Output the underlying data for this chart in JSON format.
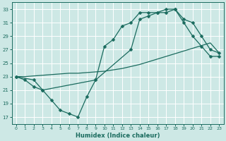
{
  "xlabel": "Humidex (Indice chaleur)",
  "background_color": "#cde8e5",
  "grid_color": "#ffffff",
  "line_color": "#1a6b5e",
  "xlim": [
    -0.5,
    23.5
  ],
  "ylim": [
    16,
    34
  ],
  "xticks": [
    0,
    1,
    2,
    3,
    4,
    5,
    6,
    7,
    8,
    9,
    10,
    11,
    12,
    13,
    14,
    15,
    16,
    17,
    18,
    19,
    20,
    21,
    22,
    23
  ],
  "yticks": [
    17,
    19,
    21,
    23,
    25,
    27,
    29,
    31,
    33
  ],
  "line1_x": [
    0,
    1,
    2,
    3,
    4,
    5,
    6,
    7,
    8,
    9,
    10,
    11,
    12,
    13,
    14,
    15,
    16,
    17,
    18,
    19,
    20,
    21,
    22,
    23
  ],
  "line1_y": [
    23.0,
    22.5,
    21.5,
    21.0,
    19.5,
    18.0,
    17.5,
    17.0,
    20.0,
    22.5,
    27.5,
    28.5,
    30.5,
    31.0,
    32.5,
    32.5,
    32.5,
    33.0,
    33.0,
    31.0,
    29.0,
    27.5,
    26.0,
    26.0
  ],
  "line2_x": [
    0,
    1,
    2,
    3,
    4,
    5,
    6,
    7,
    8,
    9,
    10,
    11,
    12,
    13,
    14,
    15,
    16,
    17,
    18,
    19,
    20,
    21,
    22,
    23
  ],
  "line2_y": [
    23.0,
    23.0,
    23.1,
    23.2,
    23.3,
    23.4,
    23.5,
    23.5,
    23.6,
    23.7,
    23.8,
    24.0,
    24.2,
    24.5,
    24.8,
    25.2,
    25.6,
    26.0,
    26.4,
    26.8,
    27.2,
    27.6,
    28.0,
    26.5
  ],
  "line3_x": [
    0,
    2,
    3,
    9,
    13,
    14,
    15,
    16,
    17,
    18,
    19,
    20,
    21,
    22,
    23
  ],
  "line3_y": [
    23.0,
    22.5,
    21.0,
    22.5,
    27.0,
    31.5,
    32.0,
    32.5,
    32.5,
    33.0,
    31.5,
    31.0,
    29.0,
    27.0,
    26.5
  ]
}
